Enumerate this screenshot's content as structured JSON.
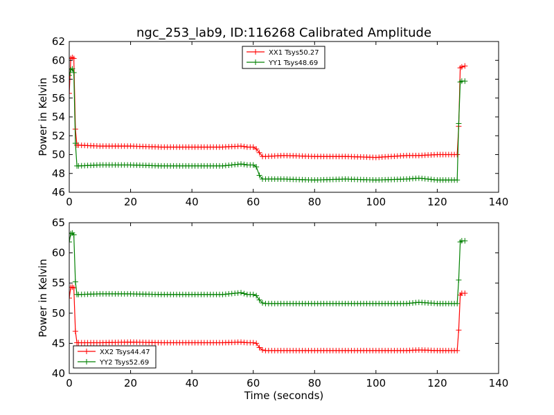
{
  "chart_data": [
    {
      "type": "line",
      "title": "ngc_253_lab9, ID:116268 Calibrated Amplitude",
      "xlabel": "",
      "ylabel": "Power in Kelvin",
      "xlim": [
        0,
        140
      ],
      "ylim": [
        46,
        62
      ],
      "xticks": [
        "0",
        "20",
        "40",
        "60",
        "80",
        "100",
        "120",
        "140"
      ],
      "yticks": [
        "46",
        "48",
        "50",
        "52",
        "54",
        "56",
        "58",
        "60",
        "62"
      ],
      "grid": false,
      "legend_position": "top-center",
      "series": [
        {
          "name": "XX1 Tsys50.27",
          "color": "#ff0000",
          "marker": "plus",
          "x": [
            0,
            0.5,
            1,
            1.5,
            2,
            2.5,
            3,
            10,
            20,
            30,
            40,
            50,
            56,
            58,
            60,
            61,
            62,
            63,
            64,
            70,
            80,
            90,
            100,
            110,
            114,
            120,
            126.5,
            127,
            127.5,
            128,
            129
          ],
          "y": [
            56.5,
            60.2,
            60.3,
            60.2,
            52.7,
            51.0,
            51.0,
            50.9,
            50.9,
            50.8,
            50.8,
            50.8,
            50.9,
            50.8,
            50.8,
            50.6,
            50.2,
            49.8,
            49.8,
            49.9,
            49.8,
            49.8,
            49.7,
            49.9,
            49.9,
            50.0,
            50.0,
            53.0,
            59.2,
            59.3,
            59.4
          ]
        },
        {
          "name": "YY1 Tsys48.69",
          "color": "#008000",
          "marker": "plus",
          "x": [
            0,
            0.5,
            1,
            1.5,
            2,
            2.5,
            3,
            10,
            20,
            30,
            40,
            50,
            56,
            58,
            60,
            61,
            62,
            63,
            64,
            70,
            80,
            90,
            100,
            110,
            114,
            120,
            126.5,
            127,
            127.5,
            128,
            129
          ],
          "y": [
            58.4,
            59.0,
            59.1,
            58.7,
            51.2,
            48.8,
            48.8,
            48.9,
            48.9,
            48.8,
            48.8,
            48.8,
            49.0,
            48.9,
            48.9,
            48.7,
            47.8,
            47.4,
            47.4,
            47.4,
            47.3,
            47.4,
            47.3,
            47.4,
            47.5,
            47.3,
            47.3,
            53.3,
            57.7,
            57.8,
            57.8
          ]
        }
      ]
    },
    {
      "type": "line",
      "title": "",
      "xlabel": "Time (seconds)",
      "ylabel": "Power in Kelvin",
      "xlim": [
        0,
        140
      ],
      "ylim": [
        40,
        65
      ],
      "xticks": [
        "0",
        "20",
        "40",
        "60",
        "80",
        "100",
        "120",
        "140"
      ],
      "yticks": [
        "40",
        "45",
        "50",
        "55",
        "60",
        "65"
      ],
      "grid": false,
      "legend_position": "bottom-left",
      "series": [
        {
          "name": "XX2 Tsys44.47",
          "color": "#ff0000",
          "marker": "plus",
          "x": [
            0,
            0.5,
            1,
            1.5,
            2,
            2.5,
            3,
            10,
            20,
            30,
            40,
            50,
            56,
            58,
            60,
            61,
            62,
            63,
            64,
            70,
            80,
            90,
            100,
            110,
            114,
            120,
            126.5,
            127,
            127.5,
            128,
            129
          ],
          "y": [
            52.5,
            54.3,
            54.3,
            54.2,
            47.0,
            45.1,
            45.1,
            45.1,
            45.2,
            45.1,
            45.1,
            45.1,
            45.2,
            45.1,
            45.1,
            45.0,
            44.3,
            43.9,
            43.8,
            43.8,
            43.8,
            43.8,
            43.8,
            43.8,
            43.9,
            43.8,
            43.8,
            47.2,
            53.0,
            53.3,
            53.3
          ]
        },
        {
          "name": "YY2 Tsys52.69",
          "color": "#008000",
          "marker": "plus",
          "x": [
            0,
            0.5,
            1,
            1.5,
            2,
            2.5,
            3,
            10,
            20,
            30,
            40,
            50,
            56,
            58,
            60,
            61,
            62,
            63,
            64,
            70,
            80,
            90,
            100,
            110,
            114,
            120,
            126.5,
            127,
            127.5,
            128,
            129
          ],
          "y": [
            61.8,
            63.2,
            63.3,
            63.0,
            55.2,
            53.1,
            53.1,
            53.2,
            53.2,
            53.1,
            53.1,
            53.1,
            53.4,
            53.1,
            53.1,
            52.9,
            52.2,
            51.7,
            51.6,
            51.6,
            51.6,
            51.6,
            51.6,
            51.6,
            51.8,
            51.6,
            51.6,
            55.5,
            61.8,
            62.0,
            62.0
          ]
        }
      ]
    }
  ]
}
